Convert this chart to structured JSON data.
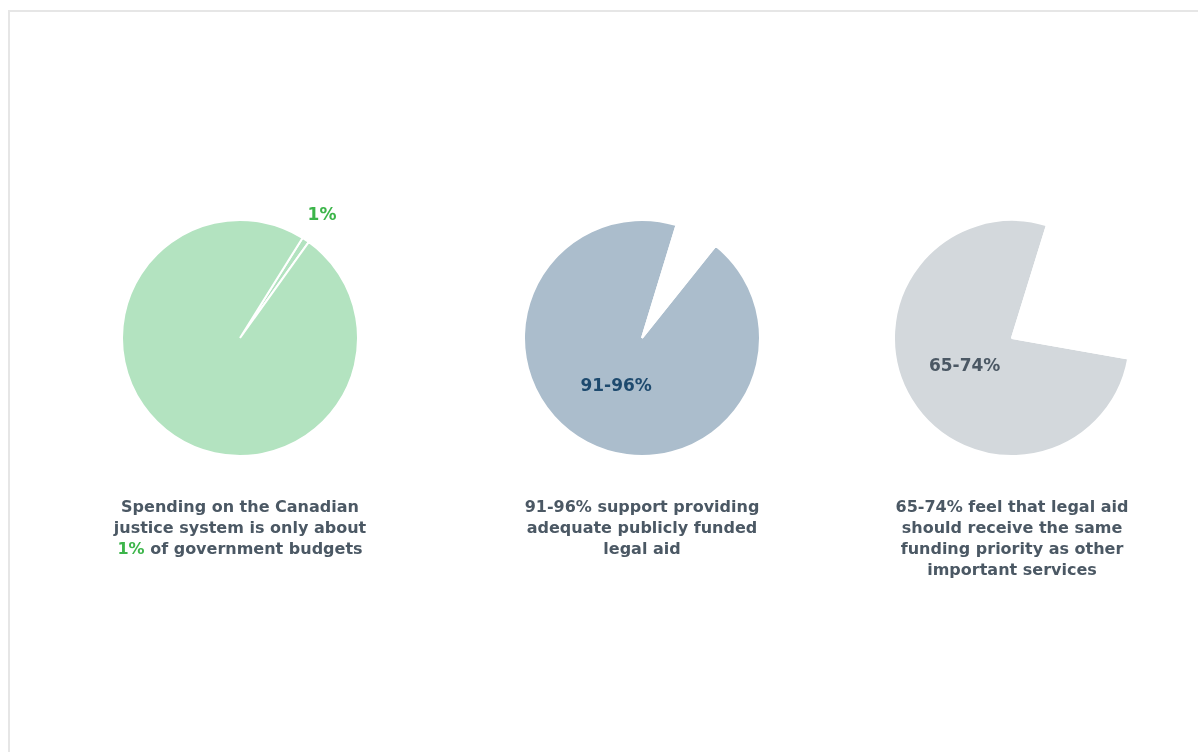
{
  "chart_data": [
    {
      "type": "pie",
      "categories": [
        null,
        null
      ],
      "values": [
        1,
        99
      ],
      "colors": [
        "#b3e3c0",
        "#b3e3c0"
      ],
      "value_labels": [
        "1%",
        null
      ],
      "annotations": [
        "Spending on the Canadian justice system is only about 1% of government budgets"
      ]
    },
    {
      "type": "pie",
      "categories": [
        null,
        null
      ],
      "values": [
        94,
        6
      ],
      "colors": [
        "#abbdcc",
        "#ffffff"
      ],
      "annotations": [
        "91-96%",
        "91-96% support providing adequate publicly funded legal aid"
      ]
    },
    {
      "type": "pie",
      "categories": [
        null,
        null
      ],
      "values": [
        77,
        23
      ],
      "colors": [
        "#d3d8dc",
        "#ffffff"
      ],
      "annotations": [
        "65-74%",
        "65-74% feel that legal aid should receive the same funding priority as other important services"
      ]
    }
  ]
}
